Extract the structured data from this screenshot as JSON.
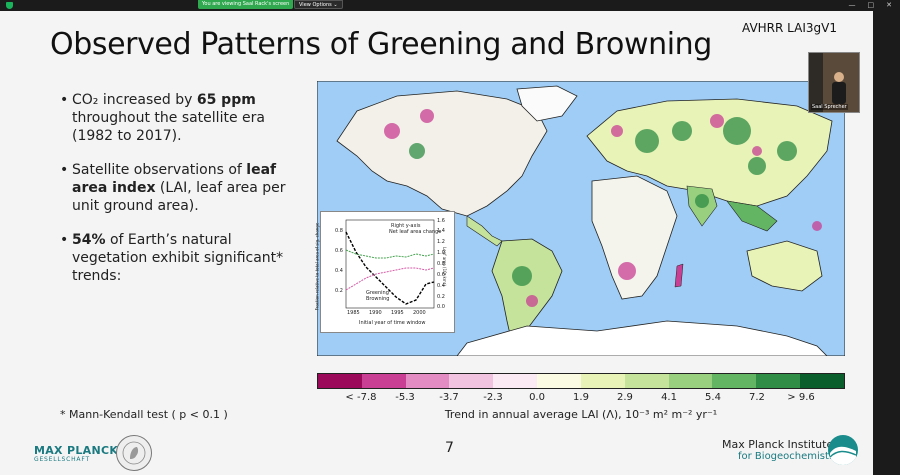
{
  "meeting": {
    "share_banner": "You are viewing Saal Rack's screen",
    "view_options": "View Options ⌄",
    "window_controls": [
      "—",
      "□",
      "✕"
    ]
  },
  "slide": {
    "title": "Observed Patterns of Greening and Browning",
    "data_label": "AVHRR LAI3gV1",
    "bullets": [
      {
        "prefix": "CO₂ increased by ",
        "bold": "65 ppm",
        "suffix": " throughout the satellite era (1982 to 2017)."
      },
      {
        "prefix": "Satellite observations of ",
        "bold": "leaf area index",
        "suffix": " (LAI, leaf area per unit ground area)."
      },
      {
        "prefix": "",
        "bold": "54%",
        "suffix": " of Earth’s natural vegetation exhibit significant* trends:"
      }
    ],
    "footnote": "* Mann-Kendall test ( p < 0.1 )",
    "page_number": "7",
    "logo_left": {
      "title": "MAX PLANCK",
      "subtitle": "GESELLSCHAFT"
    },
    "institute": {
      "name": "Max Planck Institute",
      "subtitle": "for Biogeochemistry"
    }
  },
  "colorbar": {
    "colors": [
      "#9b0a5a",
      "#c93f93",
      "#e38cc3",
      "#f2c3e0",
      "#fbeaf4",
      "#fbfbe3",
      "#e8f3b8",
      "#c5e39a",
      "#98d07f",
      "#64b563",
      "#2f8d45",
      "#0a5e2b"
    ],
    "ticks": [
      "< -7.8",
      "-5.3",
      "-3.7",
      "-2.3",
      "0.0",
      "1.9",
      "2.9",
      "4.1",
      "5.4",
      "7.2",
      "> 9.6"
    ],
    "title": "Trend in annual average LAI (Λ), 10⁻³ m² m⁻² yr⁻¹"
  },
  "inset": {
    "legend_right_axis": "Right y-axis",
    "legend_net": "Net leaf area change",
    "legend_greening": "Greening",
    "legend_browning": "Browning",
    "xlabel": "Initial year of time window",
    "ylabel_left": "Fraction relative to total area of sig. change",
    "ylabel_right": "Leaf area (10⁶ km²)",
    "x_ticks": [
      "1985",
      "1990",
      "1995",
      "2000"
    ],
    "y_ticks_left": [
      "0.8",
      "0.6",
      "0.4",
      "0.2"
    ],
    "y_ticks_right": [
      "1.6",
      "1.4",
      "1.2",
      "1.0",
      "0.8",
      "0.6",
      "0.4",
      "0.2",
      "0.0"
    ]
  },
  "webcam": {
    "name": "Saal Sprecher"
  },
  "colors": {
    "ocean": "#9fcdf5",
    "land": "#f4f4f0",
    "teal": "#1a7a80"
  }
}
